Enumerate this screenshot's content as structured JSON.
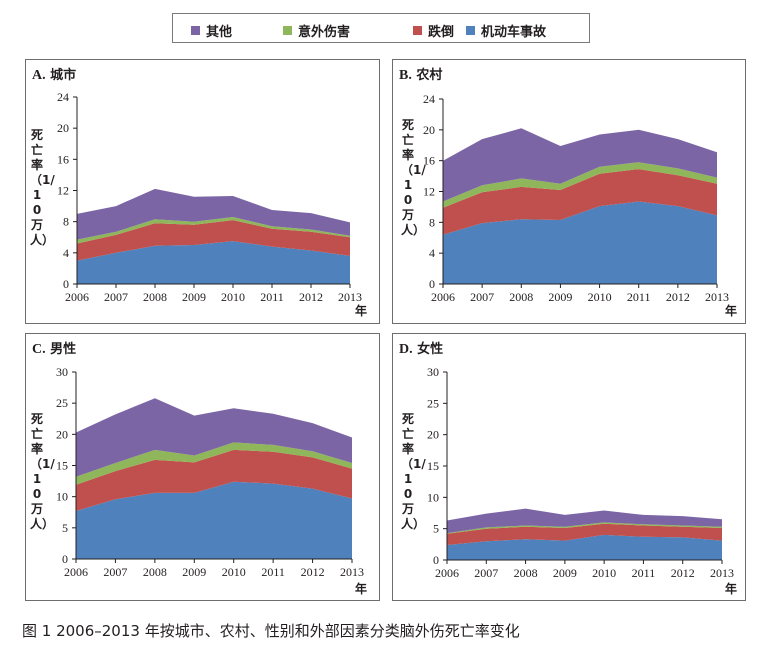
{
  "legend": [
    {
      "label": "其他",
      "color": "#7b65a5",
      "icon": "square"
    },
    {
      "label": "意外伤害",
      "color": "#8fb65a",
      "icon": "square"
    },
    {
      "label": "跌倒",
      "color": "#c0504d",
      "icon": "square"
    },
    {
      "label": "机动车事故",
      "color": "#4f81bd",
      "icon": "square"
    }
  ],
  "caption": "图 1 2006–2013 年按城市、农村、性别和外部因素分类脑外伤死亡率变化",
  "chart_data": [
    {
      "type": "area",
      "stacked": true,
      "letter": "A.",
      "title": "城市",
      "xlabel": "年",
      "ylabel": "死亡率（1/10万人）",
      "x": [
        "2006",
        "2007",
        "2008",
        "2009",
        "2010",
        "2011",
        "2012",
        "2013"
      ],
      "ylim": [
        0,
        24
      ],
      "yticks": [
        0,
        4,
        8,
        12,
        16,
        20,
        24
      ],
      "grid": false,
      "series": [
        {
          "name": "机动车事故",
          "values": [
            3.0,
            4.0,
            4.9,
            5.0,
            5.5,
            4.8,
            4.3,
            3.6
          ]
        },
        {
          "name": "跌倒",
          "values": [
            2.2,
            2.3,
            2.9,
            2.6,
            2.7,
            2.3,
            2.4,
            2.4
          ]
        },
        {
          "name": "意外伤害",
          "values": [
            0.5,
            0.4,
            0.5,
            0.4,
            0.4,
            0.3,
            0.3,
            0.2
          ]
        },
        {
          "name": "其他",
          "values": [
            3.3,
            3.3,
            3.9,
            3.2,
            2.7,
            2.1,
            2.1,
            1.7
          ]
        }
      ]
    },
    {
      "type": "area",
      "stacked": true,
      "letter": "B.",
      "title": "农村",
      "xlabel": "年",
      "ylabel": "死亡率（1/10万人）",
      "x": [
        "2006",
        "2007",
        "2008",
        "2009",
        "2010",
        "2011",
        "2012",
        "2013"
      ],
      "ylim": [
        0,
        24
      ],
      "yticks": [
        0,
        4,
        8,
        12,
        16,
        20,
        24
      ],
      "grid": false,
      "series": [
        {
          "name": "机动车事故",
          "values": [
            6.4,
            7.9,
            8.4,
            8.3,
            10.1,
            10.7,
            10.1,
            8.9
          ]
        },
        {
          "name": "跌倒",
          "values": [
            3.5,
            4.0,
            4.2,
            3.9,
            4.2,
            4.2,
            4.0,
            4.1
          ]
        },
        {
          "name": "意外伤害",
          "values": [
            0.8,
            0.9,
            1.1,
            0.8,
            0.9,
            0.9,
            0.9,
            0.8
          ]
        },
        {
          "name": "其他",
          "values": [
            5.3,
            6.0,
            6.5,
            4.9,
            4.2,
            4.2,
            3.8,
            3.3
          ]
        }
      ]
    },
    {
      "type": "area",
      "stacked": true,
      "letter": "C.",
      "title": "男性",
      "xlabel": "年",
      "ylabel": "死亡率（1/10万人）",
      "x": [
        "2006",
        "2007",
        "2008",
        "2009",
        "2010",
        "2011",
        "2012",
        "2013"
      ],
      "ylim": [
        0,
        30
      ],
      "yticks": [
        0,
        5,
        10,
        15,
        20,
        25,
        30
      ],
      "grid": false,
      "series": [
        {
          "name": "机动车事故",
          "values": [
            7.7,
            9.6,
            10.6,
            10.6,
            12.4,
            12.1,
            11.3,
            9.7
          ]
        },
        {
          "name": "跌倒",
          "values": [
            4.2,
            4.5,
            5.3,
            4.9,
            5.1,
            5.1,
            5.0,
            4.8
          ]
        },
        {
          "name": "意外伤害",
          "values": [
            1.3,
            1.3,
            1.6,
            1.1,
            1.2,
            1.1,
            1.0,
            0.9
          ]
        },
        {
          "name": "其他",
          "values": [
            7.1,
            7.8,
            8.3,
            6.4,
            5.5,
            5.0,
            4.5,
            4.1
          ]
        }
      ]
    },
    {
      "type": "area",
      "stacked": true,
      "letter": "D.",
      "title": "女性",
      "xlabel": "年",
      "ylabel": "死亡率（1/10万人）",
      "x": [
        "2006",
        "2007",
        "2008",
        "2009",
        "2010",
        "2011",
        "2012",
        "2013"
      ],
      "ylim": [
        0,
        30
      ],
      "yticks": [
        0,
        5,
        10,
        15,
        20,
        25,
        30
      ],
      "grid": false,
      "series": [
        {
          "name": "机动车事故",
          "values": [
            2.4,
            3.0,
            3.3,
            3.1,
            4.0,
            3.7,
            3.6,
            3.1
          ]
        },
        {
          "name": "跌倒",
          "values": [
            1.8,
            2.0,
            2.0,
            2.0,
            1.8,
            1.8,
            1.7,
            2.0
          ]
        },
        {
          "name": "意外伤害",
          "values": [
            0.1,
            0.2,
            0.2,
            0.2,
            0.2,
            0.2,
            0.2,
            0.2
          ]
        },
        {
          "name": "其他",
          "values": [
            2.0,
            2.2,
            2.7,
            1.9,
            1.9,
            1.5,
            1.5,
            1.2
          ]
        }
      ]
    }
  ]
}
